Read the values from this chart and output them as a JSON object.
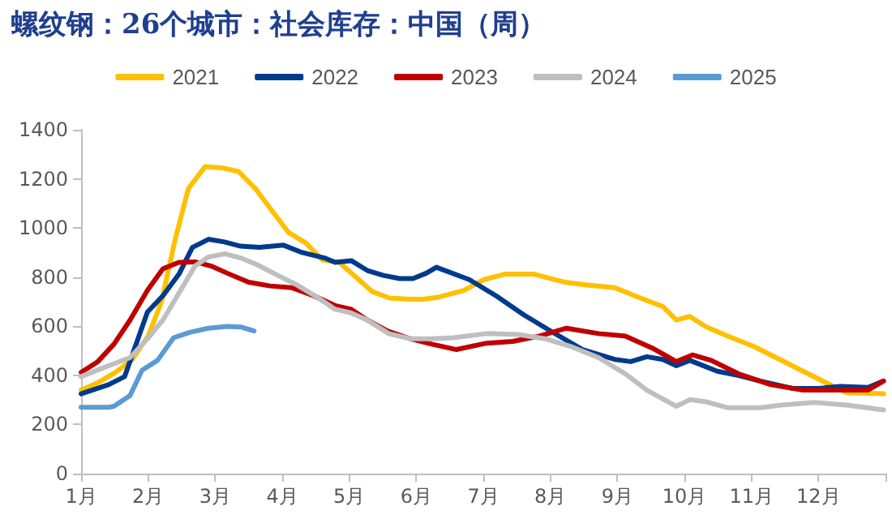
{
  "chart_data": {
    "type": "line",
    "title": "螺纹钢：26个城市：社会库存：中国（周）",
    "xlim": [
      1,
      13
    ],
    "xticks": [
      {
        "value": 1,
        "label": "1月"
      },
      {
        "value": 2,
        "label": "2月"
      },
      {
        "value": 3,
        "label": "3月"
      },
      {
        "value": 4,
        "label": "4月"
      },
      {
        "value": 5,
        "label": "5月"
      },
      {
        "value": 6,
        "label": "6月"
      },
      {
        "value": 7,
        "label": "7月"
      },
      {
        "value": 8,
        "label": "8月"
      },
      {
        "value": 9,
        "label": "9月"
      },
      {
        "value": 10,
        "label": "10月"
      },
      {
        "value": 11,
        "label": "11月"
      },
      {
        "value": 12,
        "label": "12月"
      },
      {
        "value": 13,
        "label": null
      }
    ],
    "ylim": [
      0,
      1400
    ],
    "yticks": [
      0,
      200,
      400,
      600,
      800,
      1000,
      1200,
      1400
    ],
    "grid": false,
    "legend": "top",
    "marker": "none",
    "line_style": "solid",
    "series": [
      {
        "name": "2021",
        "color": "#ffc000",
        "x": [
          1.0,
          1.25,
          1.5,
          1.75,
          2.0,
          2.2,
          2.4,
          2.6,
          2.85,
          3.1,
          3.35,
          3.6,
          3.85,
          4.1,
          4.35,
          4.6,
          4.85,
          5.1,
          5.35,
          5.6,
          5.9,
          6.1,
          6.31,
          6.71,
          7.01,
          7.32,
          7.76,
          8.22,
          8.55,
          8.96,
          9.36,
          9.68,
          9.88,
          10.08,
          10.33,
          10.65,
          11.05,
          11.53,
          12.01,
          12.42,
          12.97
        ],
        "values": [
          340,
          370,
          410,
          460,
          560,
          700,
          950,
          1160,
          1250,
          1245,
          1230,
          1160,
          1070,
          980,
          940,
          870,
          860,
          800,
          740,
          715,
          710,
          710,
          717,
          746,
          790,
          812,
          812,
          779,
          768,
          757,
          713,
          680,
          625,
          640,
          597,
          560,
          516,
          450,
          384,
          329,
          325
        ]
      },
      {
        "name": "2022",
        "color": "#003a8c",
        "x": [
          1.0,
          1.41,
          1.65,
          1.99,
          2.22,
          2.46,
          2.66,
          2.9,
          3.14,
          3.38,
          3.66,
          4.02,
          4.3,
          4.63,
          4.79,
          5.03,
          5.27,
          5.51,
          5.75,
          5.95,
          6.15,
          6.3,
          6.79,
          7.19,
          7.6,
          8.0,
          8.48,
          8.96,
          9.2,
          9.44,
          9.68,
          9.88,
          10.08,
          10.49,
          10.81,
          11.13,
          11.61,
          12.01,
          12.33,
          12.74,
          12.97
        ],
        "values": [
          325,
          362,
          395,
          658,
          724,
          812,
          921,
          954,
          943,
          926,
          921,
          930,
          900,
          878,
          860,
          867,
          827,
          807,
          794,
          794,
          816,
          840,
          790,
          724,
          647,
          581,
          505,
          465,
          456,
          476,
          465,
          439,
          461,
          417,
          399,
          377,
          347,
          347,
          355,
          351,
          377
        ]
      },
      {
        "name": "2023",
        "color": "#c00000",
        "x": [
          1.0,
          1.25,
          1.49,
          1.73,
          1.99,
          2.22,
          2.46,
          2.7,
          2.94,
          3.18,
          3.5,
          3.82,
          4.14,
          4.47,
          4.79,
          5.03,
          5.27,
          5.57,
          5.91,
          6.23,
          6.6,
          7.05,
          7.44,
          7.84,
          8.24,
          8.72,
          9.12,
          9.52,
          9.88,
          10.12,
          10.4,
          10.81,
          11.29,
          11.77,
          12.25,
          12.74,
          12.97
        ],
        "values": [
          412,
          456,
          527,
          625,
          746,
          834,
          860,
          862,
          845,
          816,
          779,
          764,
          757,
          724,
          684,
          669,
          625,
          581,
          549,
          527,
          505,
          531,
          538,
          560,
          592,
          570,
          560,
          511,
          456,
          483,
          461,
          406,
          362,
          340,
          340,
          340,
          377
        ]
      },
      {
        "name": "2024",
        "color": "#bfbfbf",
        "x": [
          1.0,
          1.41,
          1.73,
          1.99,
          2.22,
          2.46,
          2.7,
          2.9,
          3.14,
          3.38,
          3.62,
          3.9,
          4.22,
          4.55,
          4.79,
          5.03,
          5.27,
          5.59,
          5.91,
          6.23,
          6.55,
          7.05,
          7.52,
          7.92,
          8.32,
          8.72,
          9.12,
          9.44,
          9.88,
          10.08,
          10.33,
          10.65,
          11.13,
          11.45,
          11.93,
          12.42,
          12.97
        ],
        "values": [
          395,
          439,
          472,
          549,
          625,
          735,
          845,
          882,
          895,
          878,
          851,
          812,
          768,
          713,
          669,
          654,
          625,
          570,
          549,
          549,
          553,
          570,
          566,
          549,
          516,
          472,
          406,
          340,
          274,
          301,
          292,
          268,
          268,
          279,
          290,
          279,
          259
        ]
      },
      {
        "name": "2025",
        "color": "#5b9bd5",
        "x": [
          1.0,
          1.41,
          1.49,
          1.73,
          1.91,
          2.14,
          2.38,
          2.62,
          2.9,
          3.18,
          3.38,
          3.58
        ],
        "values": [
          270,
          270,
          274,
          318,
          421,
          461,
          553,
          575,
          592,
          599,
          597,
          581
        ]
      }
    ]
  }
}
